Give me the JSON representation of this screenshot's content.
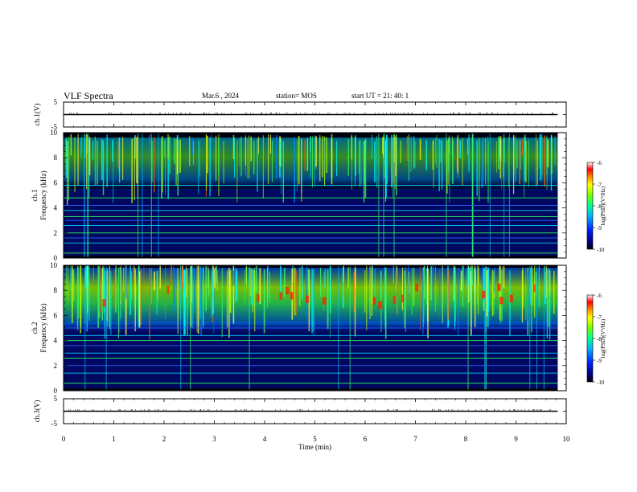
{
  "header": {
    "title": "VLF Spectra",
    "date": "Mar.6 , 2024",
    "station": "station= MOS",
    "start_ut": "start UT =  21: 40: 1"
  },
  "chart_data": [
    {
      "type": "line",
      "panel": "ch1-waveform",
      "ylabel": "ch.1(V)",
      "ylim": [
        -5,
        5
      ],
      "yticks": [
        "5",
        "-5"
      ],
      "series": [
        {
          "x": [
            0,
            9.83
          ],
          "y": [
            0,
            0
          ]
        }
      ]
    },
    {
      "type": "heatmap",
      "panel": "ch1-spectrogram",
      "ylabel": "ch.1\nFrequency (kHz)",
      "ylim": [
        0,
        10
      ],
      "yticks": [
        "0",
        "2",
        "4",
        "6",
        "8",
        "10"
      ],
      "data_extent_min": 9.83,
      "colorbar": {
        "label": "log(PSD)(V²/Hz)",
        "range": [
          -10,
          -6
        ],
        "ticks": [
          "-6",
          "-7",
          "-8",
          "-9",
          "-10"
        ]
      },
      "emission_band_khz": [
        5.2,
        9.6
      ],
      "emission_intensity": "medium",
      "horizontal_lines_khz": [
        0.4,
        1.2,
        1.6,
        2.0,
        2.6,
        3.0,
        3.3,
        3.8,
        4.2,
        4.8,
        5.8
      ]
    },
    {
      "type": "heatmap",
      "panel": "ch2-spectrogram",
      "ylabel": "ch.2\nFrequency (kHz)",
      "ylim": [
        0,
        10
      ],
      "yticks": [
        "0",
        "2",
        "4",
        "6",
        "8",
        "10"
      ],
      "data_extent_min": 9.83,
      "colorbar": {
        "label": "log(PSD)(V²/Hz)",
        "range": [
          -10,
          -6
        ],
        "ticks": [
          "-6",
          "-7",
          "-8",
          "-9",
          "-10"
        ]
      },
      "emission_band_khz": [
        4.6,
        9.8
      ],
      "emission_intensity": "strong",
      "horizontal_lines_khz": [
        0.6,
        1.4,
        2.0,
        2.6,
        3.0,
        3.6,
        4.0,
        4.4,
        5.0
      ]
    },
    {
      "type": "line",
      "panel": "ch3-waveform",
      "ylabel": "ch.3(V)",
      "ylim": [
        -5,
        5
      ],
      "yticks": [
        "5",
        "-5"
      ],
      "xlabel": "Time  (min)",
      "xlim": [
        0,
        10
      ],
      "xticks": [
        "0",
        "1",
        "2",
        "3",
        "4",
        "5",
        "6",
        "7",
        "8",
        "9",
        "10"
      ],
      "series": [
        {
          "x": [
            0,
            9.83
          ],
          "y": [
            0,
            0
          ]
        }
      ]
    }
  ]
}
